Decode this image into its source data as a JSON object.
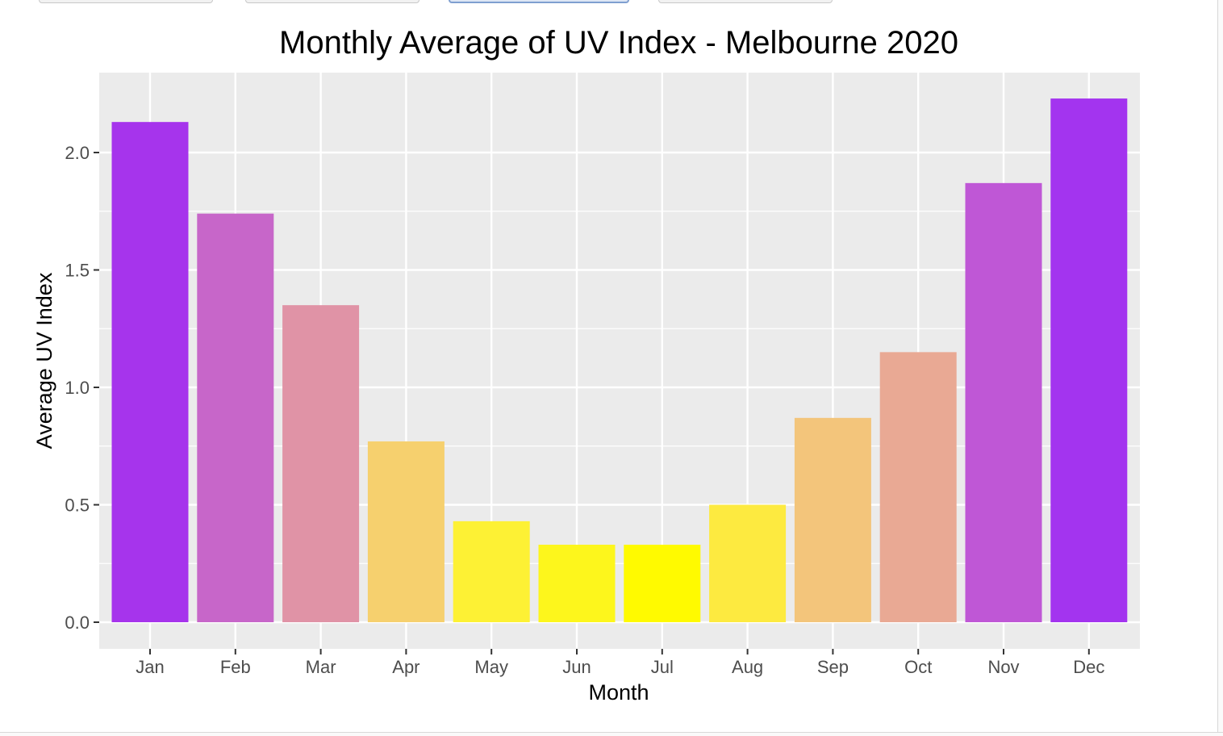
{
  "chart_data": {
    "type": "bar",
    "title": "Monthly Average of UV Index - Melbourne 2020",
    "xlabel": "Month",
    "ylabel": "Average UV Index",
    "categories": [
      "Jan",
      "Feb",
      "Mar",
      "Apr",
      "May",
      "Jun",
      "Jul",
      "Aug",
      "Sep",
      "Oct",
      "Nov",
      "Dec"
    ],
    "values": [
      2.13,
      1.74,
      1.35,
      0.77,
      0.43,
      0.33,
      0.33,
      0.5,
      0.87,
      1.15,
      1.87,
      2.23
    ],
    "colors": [
      "#a634ec",
      "#c766c9",
      "#e093a6",
      "#f6d06e",
      "#fdf134",
      "#fdf61c",
      "#fffa00",
      "#fdea40",
      "#f3c57b",
      "#e9a994",
      "#bf57d6",
      "#a334ef"
    ],
    "ylim": [
      0,
      2.28
    ],
    "yticks": [
      "0.0",
      "0.5",
      "1.0",
      "1.5",
      "2.0"
    ],
    "ytick_values": [
      0,
      0.5,
      1.0,
      1.5,
      2.0
    ],
    "grid": true,
    "panel_background": "#ebebeb",
    "gridline_color": "#ffffff"
  }
}
